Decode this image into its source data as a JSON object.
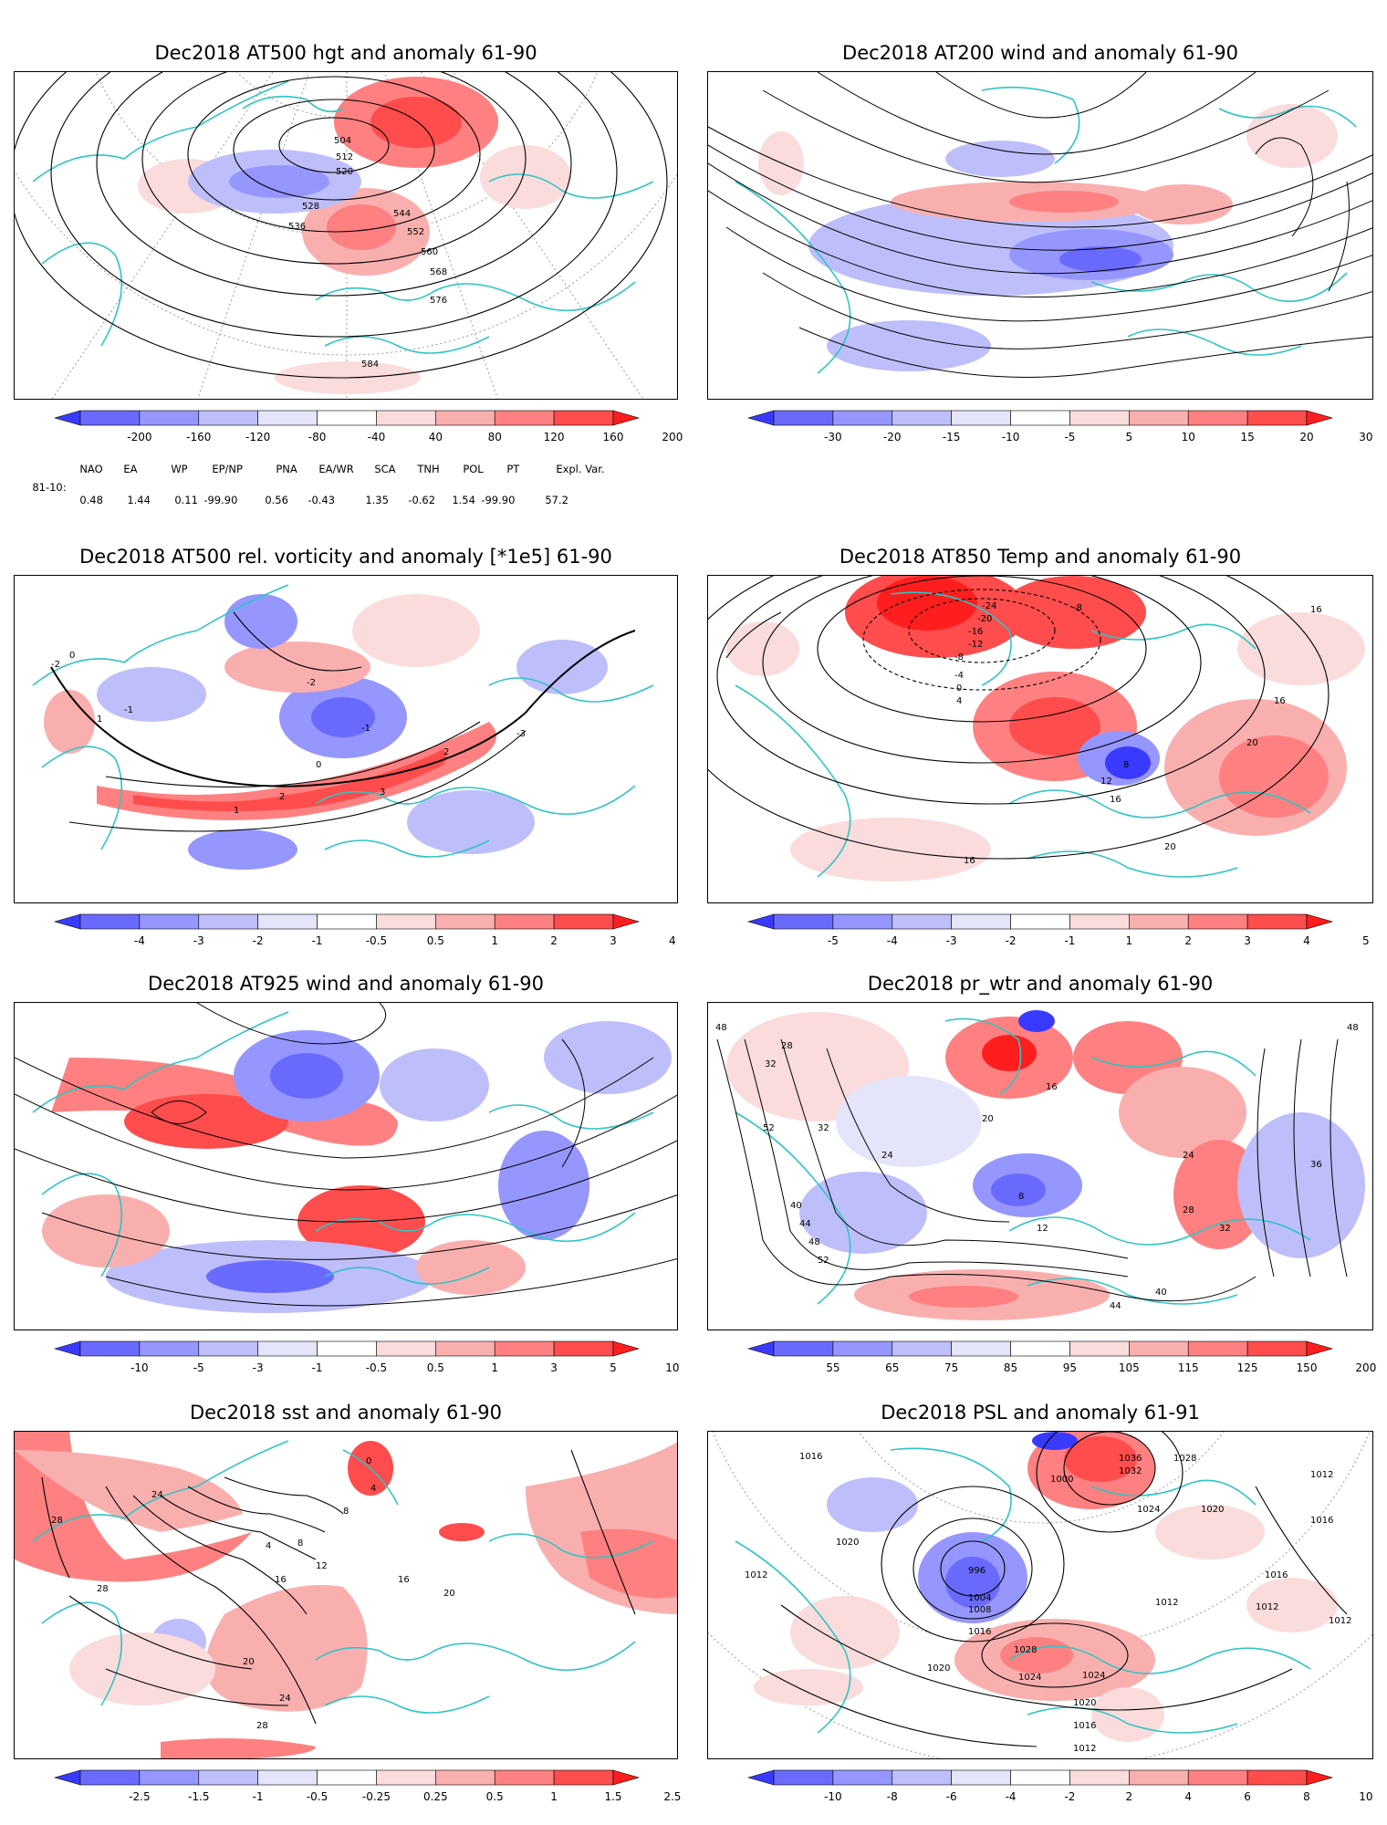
{
  "panels": [
    {
      "title": "Dec2018 AT500 hgt and anomaly 61-90",
      "colorbar": {
        "ticks": [
          "-200",
          "-160",
          "-120",
          "-80",
          "-40",
          "40",
          "80",
          "120",
          "160",
          "200"
        ],
        "colors": [
          "#3a3aff",
          "#6a6aff",
          "#9696ff",
          "#bebefa",
          "#e4e4fa",
          "#ffffff",
          "#fadcdc",
          "#faafaf",
          "#ff8080",
          "#ff4c4c",
          "#ff1e1e"
        ]
      },
      "contour_labels": [
        "504",
        "512",
        "520",
        "528",
        "536",
        "544",
        "552",
        "560",
        "568",
        "576",
        "584"
      ]
    },
    {
      "title": "Dec2018 AT200 wind and anomaly 61-90",
      "colorbar": {
        "ticks": [
          "-30",
          "-20",
          "-15",
          "-10",
          "-5",
          "5",
          "10",
          "15",
          "20",
          "30"
        ],
        "colors": [
          "#3a3aff",
          "#6a6aff",
          "#9696ff",
          "#bebefa",
          "#e4e4fa",
          "#ffffff",
          "#fadcdc",
          "#faafaf",
          "#ff8080",
          "#ff4c4c",
          "#ff1e1e"
        ]
      },
      "contour_labels": []
    },
    {
      "title": "Dec2018 AT500 rel. vorticity and anomaly [*1e5] 61-90",
      "colorbar": {
        "ticks": [
          "-4",
          "-3",
          "-2",
          "-1",
          "-0.5",
          "0.5",
          "1",
          "2",
          "3",
          "4"
        ],
        "colors": [
          "#3a3aff",
          "#6a6aff",
          "#9696ff",
          "#bebefa",
          "#e4e4fa",
          "#ffffff",
          "#fadcdc",
          "#faafaf",
          "#ff8080",
          "#ff4c4c",
          "#ff1e1e"
        ]
      },
      "contour_labels": [
        "-2",
        "-1",
        "0",
        "1",
        "2",
        "3",
        "-2",
        "-1",
        "0",
        "1",
        "2",
        "-3"
      ]
    },
    {
      "title": "Dec2018 AT850 Temp and anomaly 61-90",
      "colorbar": {
        "ticks": [
          "-5",
          "-4",
          "-3",
          "-2",
          "-1",
          "1",
          "2",
          "3",
          "4",
          "5"
        ],
        "colors": [
          "#3a3aff",
          "#6a6aff",
          "#9696ff",
          "#bebefa",
          "#e4e4fa",
          "#ffffff",
          "#fadcdc",
          "#faafaf",
          "#ff8080",
          "#ff4c4c",
          "#ff1e1e"
        ]
      },
      "contour_labels": [
        "-24",
        "-20",
        "-16",
        "-12",
        "-8",
        "-8",
        "-4",
        "0",
        "4",
        "8",
        "12",
        "16",
        "16",
        "20",
        "16",
        "20",
        "16"
      ]
    },
    {
      "title": "Dec2018 AT925 wind and anomaly 61-90",
      "colorbar": {
        "ticks": [
          "-10",
          "-5",
          "-3",
          "-1",
          "-0.5",
          "0.5",
          "1",
          "3",
          "5",
          "10"
        ],
        "colors": [
          "#3a3aff",
          "#6a6aff",
          "#9696ff",
          "#bebefa",
          "#e4e4fa",
          "#ffffff",
          "#fadcdc",
          "#faafaf",
          "#ff8080",
          "#ff4c4c",
          "#ff1e1e"
        ]
      },
      "contour_labels": []
    },
    {
      "title": "Dec2018 pr_wtr and anomaly 61-90",
      "colorbar": {
        "ticks": [
          "55",
          "65",
          "75",
          "85",
          "95",
          "105",
          "115",
          "125",
          "150",
          "200"
        ],
        "colors": [
          "#3a3aff",
          "#6a6aff",
          "#9696ff",
          "#bebefa",
          "#e4e4fa",
          "#ffffff",
          "#fadcdc",
          "#faafaf",
          "#ff8080",
          "#ff4c4c",
          "#ff1e1e"
        ]
      },
      "contour_labels": [
        "48",
        "28",
        "32",
        "52",
        "24",
        "32",
        "40",
        "44",
        "48",
        "52",
        "8",
        "12",
        "16",
        "20",
        "24",
        "28",
        "32",
        "36",
        "40",
        "44",
        "48"
      ]
    },
    {
      "title": "Dec2018 sst and anomaly 61-90",
      "colorbar": {
        "ticks": [
          "-2.5",
          "-1.5",
          "-1",
          "-0.5",
          "-0.25",
          "0.25",
          "0.5",
          "1",
          "1.5",
          "2.5"
        ],
        "colors": [
          "#3a3aff",
          "#6a6aff",
          "#9696ff",
          "#bebefa",
          "#e4e4fa",
          "#ffffff",
          "#fadcdc",
          "#faafaf",
          "#ff8080",
          "#ff4c4c",
          "#ff1e1e"
        ]
      },
      "contour_labels": [
        "28",
        "28",
        "24",
        "20",
        "16",
        "12",
        "8",
        "4",
        "0",
        "4",
        "8",
        "16",
        "20",
        "24",
        "28"
      ]
    },
    {
      "title": "Dec2018 PSL and anomaly 61-91",
      "colorbar": {
        "ticks": [
          "-10",
          "-8",
          "-6",
          "-4",
          "-2",
          "2",
          "4",
          "6",
          "8",
          "10"
        ],
        "colors": [
          "#3a3aff",
          "#6a6aff",
          "#9696ff",
          "#bebefa",
          "#e4e4fa",
          "#ffffff",
          "#fadcdc",
          "#faafaf",
          "#ff8080",
          "#ff4c4c",
          "#ff1e1e"
        ]
      },
      "contour_labels": [
        "1016",
        "1020",
        "1012",
        "1000",
        "996",
        "1004",
        "1008",
        "1016",
        "1020",
        "1024",
        "1028",
        "1032",
        "1036",
        "1028",
        "1024",
        "1020",
        "1016",
        "1012",
        "1012",
        "1016",
        "1012",
        "1012",
        "1020",
        "1024",
        "1016",
        "1012"
      ]
    }
  ],
  "indices": {
    "header": [
      "NAO",
      "EA",
      "WP",
      "EP/NP",
      "PNA",
      "EA/WR",
      "SCA",
      "TNH",
      "POL",
      "PT",
      "Expl. Var."
    ],
    "period": "81-10:",
    "values": [
      "0.48",
      "1.44",
      "0.11",
      "-99.90",
      "0.56",
      "-0.43",
      "1.35",
      "-0.62",
      "1.54",
      "-99.90",
      "57.2"
    ]
  },
  "colors": {
    "coastline": "#2fc4c4",
    "contour": "#000000",
    "grid": "#9a9a9a"
  }
}
